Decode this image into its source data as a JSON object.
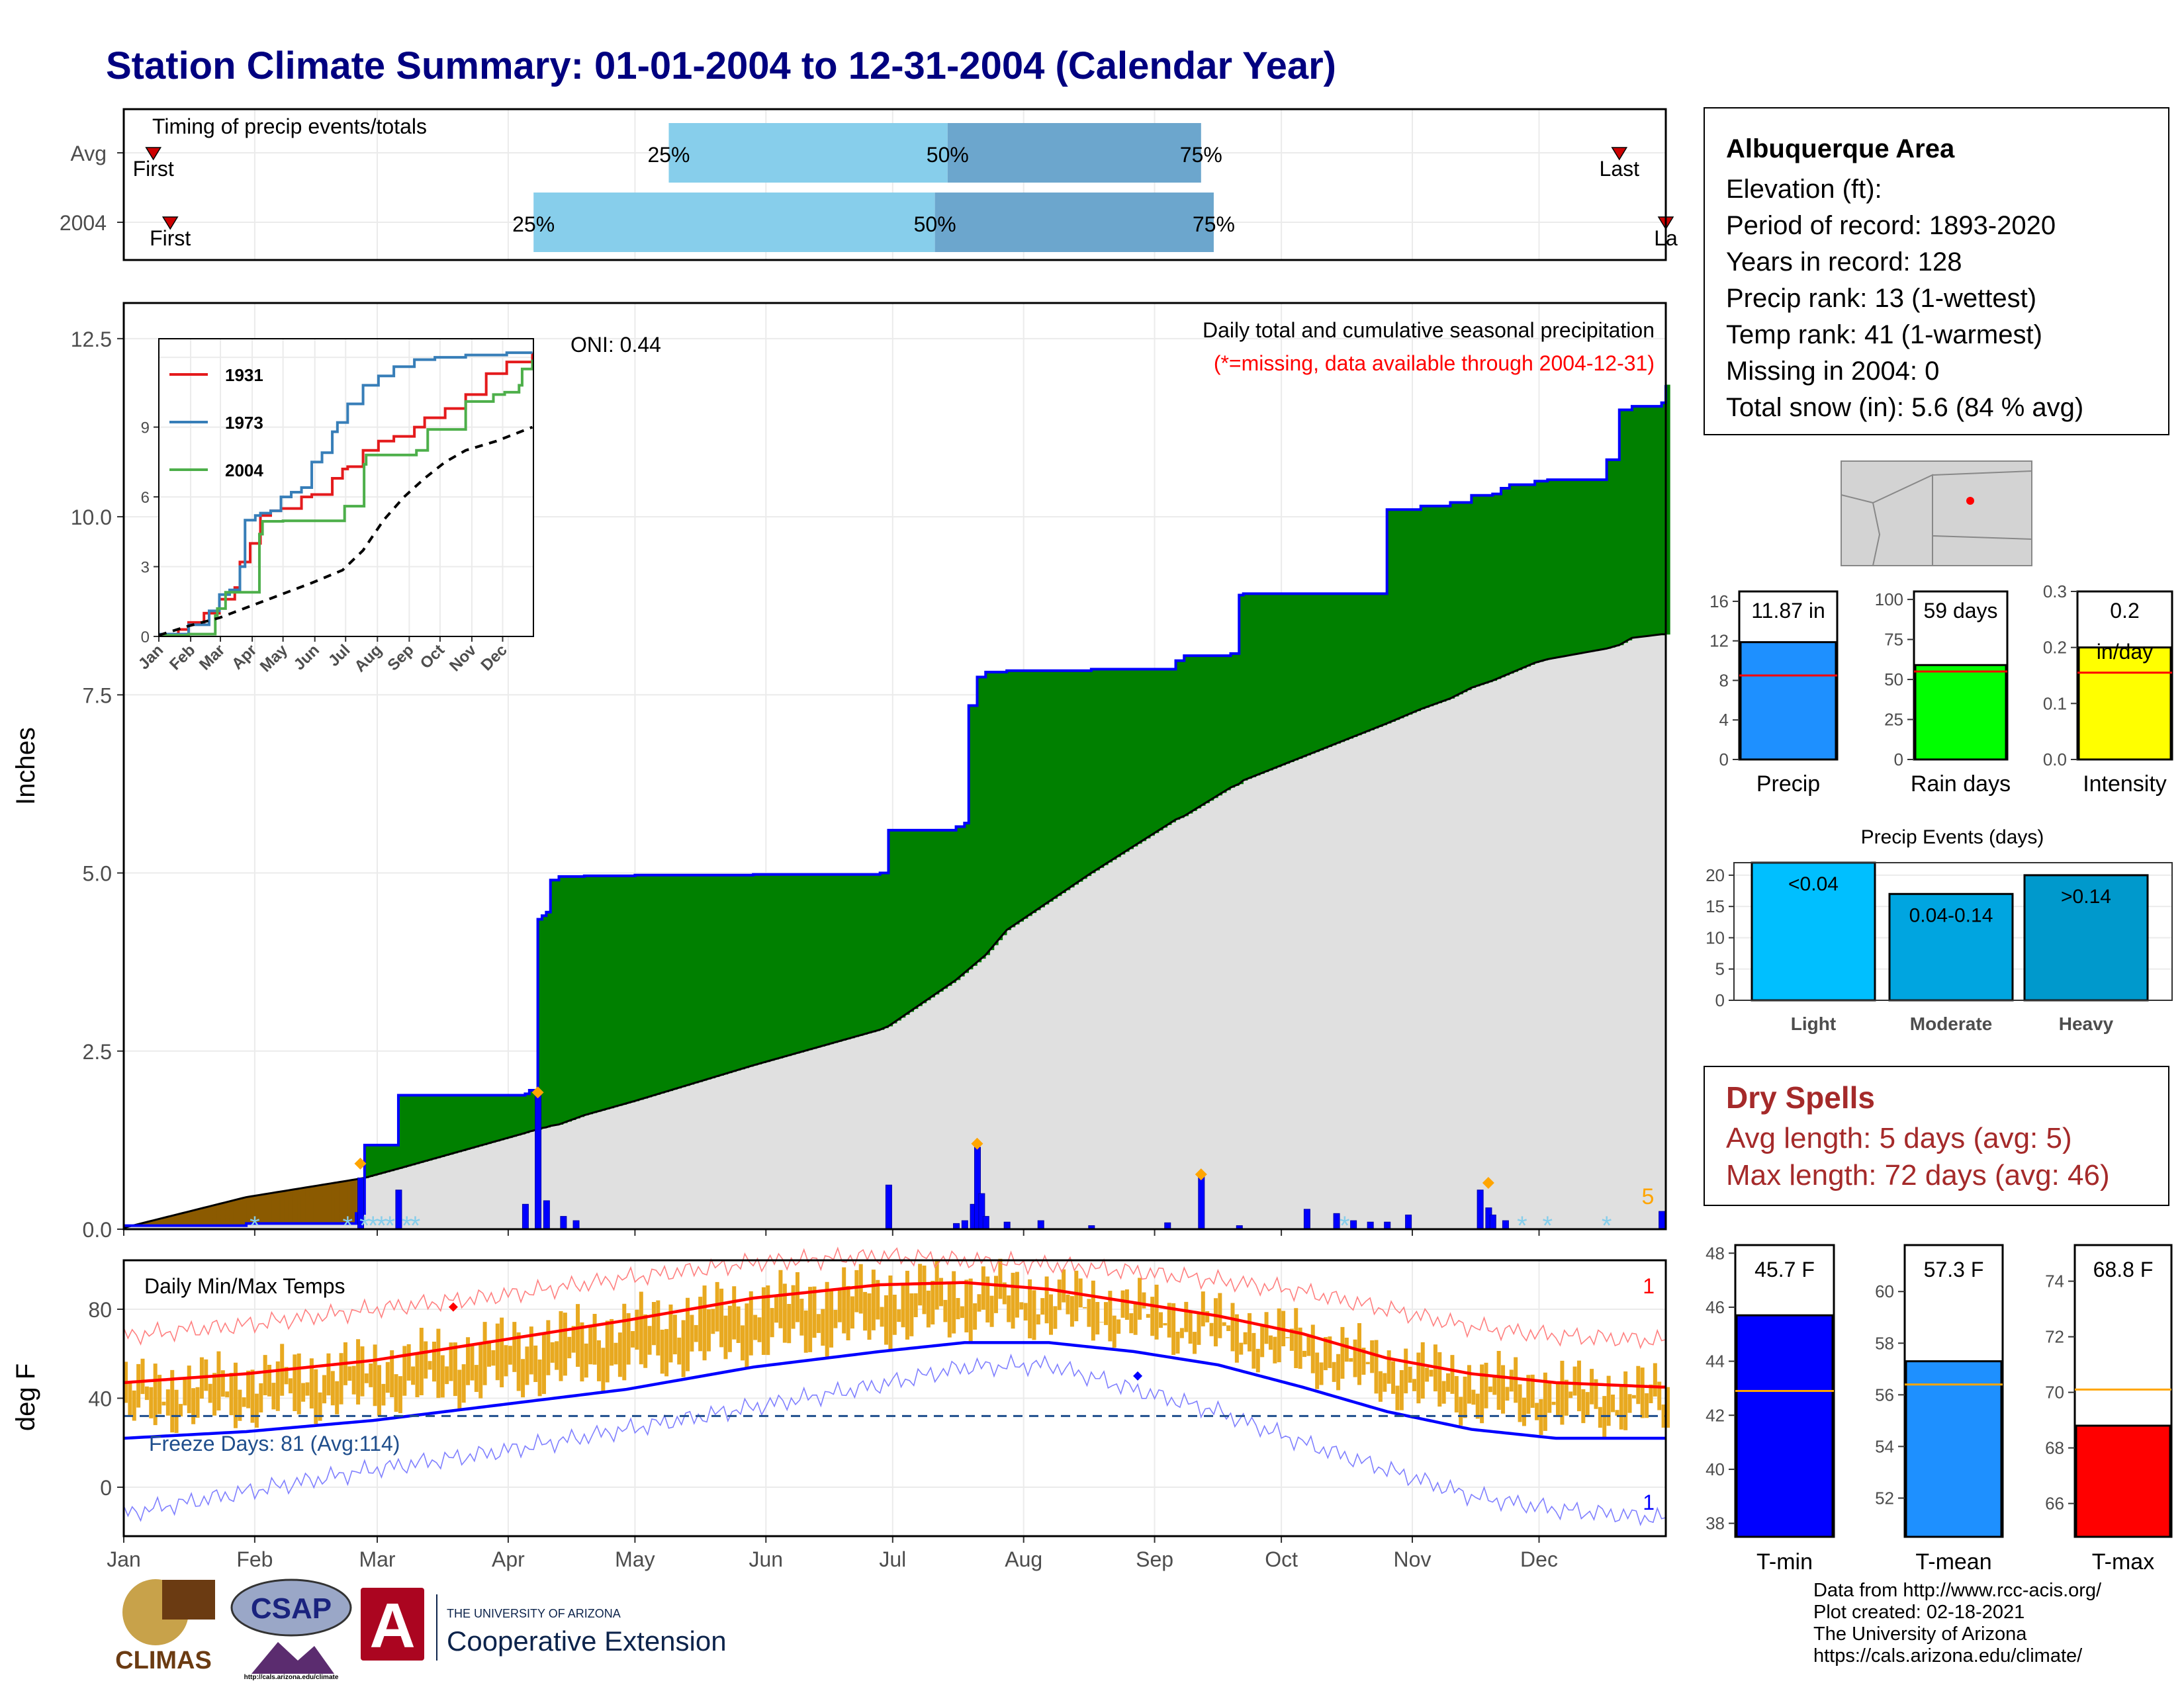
{
  "title": "Station Climate Summary: 01-01-2004 to 12-31-2004 (Calendar Year)",
  "timing": {
    "label": "Timing of precip events/totals",
    "rows": [
      {
        "name": "Avg",
        "first_label": "First",
        "last_label": "Last",
        "p25_label": "25%",
        "p50_label": "50%",
        "p75_label": "75%",
        "first_day": 8,
        "p25_day": 130,
        "p50_day": 196,
        "p75_day": 256,
        "last_day": 355
      },
      {
        "name": "2004",
        "first_label": "First",
        "last_label": "La",
        "p25_label": "25%",
        "p50_label": "50%",
        "p75_label": "75%",
        "first_day": 12,
        "p25_day": 98,
        "p50_day": 193,
        "p75_day": 259,
        "last_day": 366
      }
    ]
  },
  "months": [
    "Jan",
    "Feb",
    "Mar",
    "Apr",
    "May",
    "Jun",
    "Jul",
    "Aug",
    "Sep",
    "Oct",
    "Nov",
    "Dec"
  ],
  "precip_panel": {
    "ylabel": "Inches",
    "yticks": [
      "0.0",
      "2.5",
      "5.0",
      "7.5",
      "10.0",
      "12.5"
    ],
    "title": "Daily total and cumulative seasonal precipitation",
    "note": "(*=missing, data available through 2004-12-31)",
    "oni": "ONI: 0.44",
    "corner_value": "5",
    "colors": {
      "above": "#008000",
      "below": "#8b5a00",
      "normal": "#e0e0e0",
      "cum_line": "#0000ff",
      "bars": "#0000ff",
      "marker": "#ffa500"
    }
  },
  "chart_data": [
    {
      "type": "area",
      "title": "Daily total and cumulative seasonal precipitation",
      "ylabel": "Inches",
      "ylim": [
        0,
        13
      ],
      "x": [
        1,
        30,
        56,
        58,
        66,
        96,
        97,
        99,
        100,
        101,
        102,
        104,
        110,
        122,
        150,
        180,
        182,
        198,
        200,
        201,
        203,
        205,
        210,
        230,
        250,
        252,
        263,
        265,
        266,
        300,
        308,
        315,
        320,
        325,
        327,
        329,
        335,
        338,
        352,
        355,
        358,
        365,
        366
      ],
      "series": [
        {
          "name": "2004 cumulative",
          "values": [
            0.05,
            0.08,
            0.22,
            1.18,
            1.88,
            1.9,
            1.95,
            4.35,
            4.4,
            4.45,
            4.9,
            4.95,
            4.96,
            4.97,
            4.98,
            5.0,
            5.6,
            5.65,
            5.7,
            7.35,
            7.75,
            7.82,
            7.84,
            7.86,
            7.98,
            8.05,
            8.08,
            8.9,
            8.92,
            10.1,
            10.15,
            10.2,
            10.3,
            10.32,
            10.4,
            10.45,
            10.5,
            10.52,
            10.8,
            11.5,
            11.55,
            11.6,
            11.85
          ]
        },
        {
          "name": "Normal cumulative",
          "values": [
            0.02,
            0.45,
            0.7,
            0.72,
            0.85,
            1.35,
            1.37,
            1.4,
            1.42,
            1.43,
            1.45,
            1.47,
            1.6,
            1.8,
            2.3,
            2.8,
            2.85,
            3.5,
            3.6,
            3.65,
            3.75,
            3.85,
            4.2,
            5.0,
            5.75,
            5.8,
            6.2,
            6.25,
            6.3,
            7.1,
            7.3,
            7.45,
            7.6,
            7.7,
            7.75,
            7.8,
            7.95,
            8.0,
            8.15,
            8.2,
            8.3,
            8.35,
            8.35
          ]
        }
      ],
      "daily_bars": [
        [
          57,
          0.72
        ],
        [
          66,
          0.55
        ],
        [
          96,
          0.35
        ],
        [
          99,
          1.9
        ],
        [
          101,
          0.4
        ],
        [
          105,
          0.18
        ],
        [
          108,
          0.12
        ],
        [
          182,
          0.62
        ],
        [
          198,
          0.08
        ],
        [
          200,
          0.12
        ],
        [
          202,
          0.35
        ],
        [
          203,
          1.15
        ],
        [
          204,
          0.5
        ],
        [
          205,
          0.18
        ],
        [
          210,
          0.1
        ],
        [
          218,
          0.12
        ],
        [
          230,
          0.05
        ],
        [
          248,
          0.09
        ],
        [
          256,
          0.75
        ],
        [
          265,
          0.05
        ],
        [
          281,
          0.28
        ],
        [
          288,
          0.22
        ],
        [
          292,
          0.12
        ],
        [
          296,
          0.1
        ],
        [
          300,
          0.1
        ],
        [
          305,
          0.2
        ],
        [
          322,
          0.55
        ],
        [
          324,
          0.3
        ],
        [
          325,
          0.2
        ],
        [
          328,
          0.12
        ],
        [
          365,
          0.25
        ]
      ],
      "event_markers": [
        [
          57,
          0.92
        ],
        [
          99,
          1.92
        ],
        [
          203,
          1.2
        ],
        [
          256,
          0.77
        ],
        [
          324,
          0.65
        ]
      ],
      "snow_markers": [
        32,
        54,
        58,
        60,
        62,
        64,
        68,
        70,
        290,
        332,
        338,
        352
      ]
    },
    {
      "type": "line",
      "title": "",
      "x_tick_labels": [
        "Jan",
        "Feb",
        "Mar",
        "Apr",
        "May",
        "Jun",
        "Jul",
        "Aug",
        "Sep",
        "Oct",
        "Nov",
        "Dec"
      ],
      "y_tick_labels": [
        "0",
        "3",
        "6",
        "9"
      ],
      "ylim": [
        0,
        12.8
      ],
      "series": [
        {
          "name": "1931",
          "x": [
            1,
            20,
            30,
            45,
            60,
            75,
            80,
            90,
            100,
            110,
            120,
            140,
            150,
            170,
            180,
            185,
            200,
            215,
            230,
            250,
            260,
            280,
            300,
            320,
            340,
            365
          ],
          "values": [
            0.1,
            0.3,
            0.6,
            1.0,
            1.6,
            2.1,
            3.2,
            4.0,
            5.2,
            5.4,
            5.5,
            6.0,
            6.1,
            6.8,
            7.2,
            7.3,
            8.0,
            8.4,
            8.6,
            9.0,
            9.4,
            9.8,
            10.4,
            11.3,
            11.8,
            12.2
          ]
        },
        {
          "name": "1973",
          "x": [
            1,
            30,
            50,
            60,
            70,
            80,
            85,
            95,
            100,
            110,
            120,
            130,
            140,
            150,
            160,
            170,
            175,
            185,
            200,
            215,
            230,
            250,
            270,
            300,
            340,
            365
          ],
          "values": [
            0.1,
            0.5,
            1.1,
            1.8,
            2.0,
            3.0,
            5.0,
            5.2,
            5.3,
            5.4,
            6.0,
            6.2,
            6.4,
            7.5,
            7.9,
            8.8,
            9.2,
            10.0,
            10.8,
            11.2,
            11.6,
            11.9,
            12.0,
            12.1,
            12.2,
            12.2
          ]
        },
        {
          "name": "2004",
          "x": [
            1,
            30,
            56,
            58,
            66,
            99,
            102,
            122,
            182,
            201,
            203,
            252,
            263,
            300,
            327,
            338,
            352,
            355,
            365
          ],
          "values": [
            0.05,
            0.1,
            0.9,
            1.2,
            1.9,
            4.4,
            4.95,
            4.97,
            5.6,
            7.4,
            7.8,
            8.0,
            8.9,
            10.1,
            10.4,
            10.5,
            10.8,
            11.5,
            11.9
          ]
        },
        {
          "name": "Average",
          "x": [
            1,
            30,
            60,
            90,
            120,
            150,
            180,
            200,
            220,
            240,
            260,
            280,
            300,
            330,
            365
          ],
          "values": [
            0.05,
            0.45,
            0.8,
            1.3,
            1.8,
            2.3,
            2.85,
            3.7,
            5.0,
            6.0,
            6.8,
            7.5,
            8.0,
            8.4,
            9.0
          ]
        }
      ]
    },
    {
      "type": "bar",
      "title": "Precip",
      "categories": [
        "Precip"
      ],
      "values": [
        11.87
      ],
      "data_label": "11.87 in",
      "average": 8.5,
      "ylim": [
        0,
        17
      ],
      "yticks": [
        "0",
        "4",
        "8",
        "12",
        "16"
      ]
    },
    {
      "type": "bar",
      "title": "Rain days",
      "categories": [
        "Rain days"
      ],
      "values": [
        59
      ],
      "data_label": "59 days",
      "average": 55,
      "ylim": [
        0,
        105
      ],
      "yticks": [
        "0",
        "25",
        "50",
        "75",
        "100"
      ]
    },
    {
      "type": "bar",
      "title": "Intensity",
      "categories": [
        "Intensity"
      ],
      "values": [
        0.2
      ],
      "data_label": "0.2\nin/day",
      "average": 0.155,
      "ylim": [
        0,
        0.3
      ],
      "yticks": [
        "0.0",
        "0.1",
        "0.2",
        "0.3"
      ]
    },
    {
      "type": "bar",
      "title": "Precip Events (days)",
      "categories": [
        "Light",
        "Moderate",
        "Heavy"
      ],
      "bar_labels": [
        "<0.04",
        "0.04-0.14",
        ">0.14"
      ],
      "values": [
        22,
        17,
        20
      ],
      "ylim": [
        0,
        22
      ],
      "yticks": [
        "0",
        "5",
        "10",
        "15",
        "20"
      ]
    },
    {
      "type": "line",
      "title": "Daily Min/Max Temps",
      "ylabel": "deg F",
      "ylim": [
        -22,
        102
      ],
      "yticks": [
        "0",
        "40",
        "80"
      ],
      "freeze_days_label": "Freeze Days: 81 (Avg:114)",
      "freeze_line": 32,
      "record_count_top": "1",
      "record_count_bottom": "1",
      "series": [
        {
          "name": "Normal max",
          "x": [
            1,
            30,
            60,
            90,
            120,
            150,
            180,
            200,
            220,
            240,
            260,
            280,
            300,
            320,
            340,
            365
          ],
          "values": [
            47,
            51,
            57,
            66,
            75,
            85,
            91,
            92,
            89,
            83,
            77,
            69,
            58,
            51,
            47,
            45
          ]
        },
        {
          "name": "Normal min",
          "x": [
            1,
            30,
            60,
            90,
            120,
            150,
            180,
            200,
            220,
            240,
            260,
            280,
            300,
            320,
            340,
            365
          ],
          "values": [
            22,
            25,
            30,
            37,
            44,
            54,
            61,
            65,
            65,
            61,
            55,
            45,
            34,
            26,
            22,
            22
          ]
        },
        {
          "name": "Record max",
          "x": [
            1,
            30,
            60,
            90,
            120,
            150,
            180,
            200,
            220,
            240,
            260,
            280,
            300,
            320,
            340,
            365
          ],
          "values": [
            68,
            73,
            80,
            86,
            94,
            101,
            104,
            102,
            100,
            97,
            93,
            88,
            80,
            72,
            68,
            66
          ]
        },
        {
          "name": "Record min",
          "x": [
            1,
            30,
            60,
            90,
            120,
            150,
            180,
            200,
            220,
            240,
            260,
            280,
            300,
            320,
            340,
            365
          ],
          "values": [
            -12,
            -2,
            8,
            16,
            26,
            36,
            46,
            54,
            55,
            44,
            34,
            20,
            8,
            -4,
            -10,
            -14
          ]
        }
      ],
      "daily_range": {
        "max_anomaly_amplitude": 8,
        "min_anomaly_amplitude": 6
      },
      "record_highs": [
        [
          79,
          81
        ]
      ],
      "record_lows": [
        [
          241,
          50
        ]
      ]
    },
    {
      "type": "bar",
      "title": "T-min",
      "categories": [
        "T-min"
      ],
      "values": [
        45.7
      ],
      "data_label": "45.7 F",
      "average": 42.9,
      "ylim": [
        37.5,
        48.3
      ],
      "yticks": [
        "38",
        "40",
        "42",
        "44",
        "46",
        "48"
      ]
    },
    {
      "type": "bar",
      "title": "T-mean",
      "categories": [
        "T-mean"
      ],
      "values": [
        57.3
      ],
      "data_label": "57.3 F",
      "average": 56.4,
      "ylim": [
        50.5,
        61.8
      ],
      "yticks": [
        "52",
        "54",
        "56",
        "58",
        "60"
      ]
    },
    {
      "type": "bar",
      "title": "T-max",
      "categories": [
        "T-max"
      ],
      "values": [
        68.8
      ],
      "data_label": "68.8 F",
      "average": 70.1,
      "ylim": [
        64.8,
        75.3
      ],
      "yticks": [
        "66",
        "68",
        "70",
        "72",
        "74"
      ]
    }
  ],
  "info": {
    "station": "Albuquerque Area",
    "elevation": "Elevation (ft):",
    "period": "Period of record: 1893-2020",
    "years": "Years in record: 128",
    "precip_rank": "Precip rank: 13 (1-wettest)",
    "temp_rank": "Temp rank: 41 (1-warmest)",
    "missing": "Missing in 2004: 0",
    "snow": "Total snow (in): 5.6 (84 % avg)"
  },
  "dry_spells": {
    "title": "Dry Spells",
    "avg": "Avg length: 5 days (avg: 5)",
    "max": "Max length: 72 days (avg: 46)"
  },
  "footer": {
    "line1": "Data from http://www.rcc-acis.org/",
    "line2": "Plot created: 02-18-2021",
    "line3": "The University of Arizona",
    "line4": "https://cals.arizona.edu/climate/"
  },
  "logos": {
    "climas": "CLIMAS",
    "csap": "CSAP",
    "csap_url": "http://cals.arizona.edu/climate",
    "ua_letter": "A",
    "ua_small": "THE UNIVERSITY OF ARIZONA",
    "ua_big": "Cooperative Extension"
  }
}
